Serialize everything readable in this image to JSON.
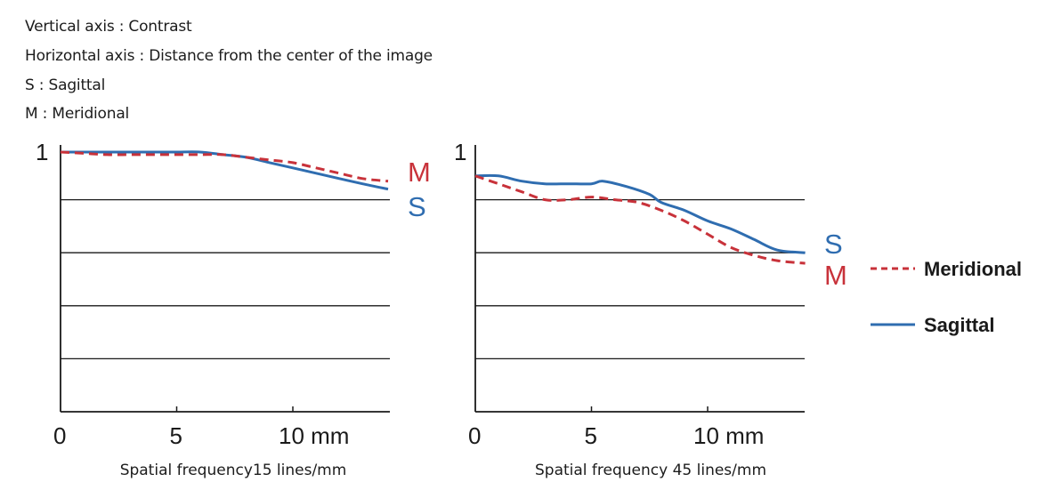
{
  "notes": {
    "vertical_axis": "Vertical axis : Contrast",
    "horizontal_axis": "Horizontal axis : Distance from the center of the image",
    "s_def": "S : Sagittal",
    "m_def": "M : Meridional"
  },
  "colors": {
    "meridional": "#c8323a",
    "sagittal": "#2f6db0",
    "axis": "#1a1a1a",
    "grid": "#1a1a1a"
  },
  "legend": {
    "meridional_label": "Meridional",
    "sagittal_label": "Sagittal",
    "placement": "right-middle"
  },
  "chart_data": [
    {
      "type": "line",
      "title": "",
      "caption": "Spatial frequency15 lines/mm",
      "xlabel": "Distance from the center of the image (mm)",
      "ylabel": "Contrast",
      "xlim": [
        0,
        14.2
      ],
      "ylim": [
        0,
        1
      ],
      "x_ticks": [
        0,
        5,
        10
      ],
      "x_tick_labels": [
        "0",
        "5",
        "10 mm"
      ],
      "y_tick_labels": [
        "1"
      ],
      "gridlines_y": [
        0.2,
        0.4,
        0.6,
        0.8
      ],
      "grid": true,
      "end_labels": {
        "upper": "M",
        "lower": "S"
      },
      "series": [
        {
          "name": "Meridional",
          "short": "M",
          "style": "dashed",
          "x": [
            0,
            1,
            2,
            3,
            4,
            5,
            6,
            7,
            8,
            9,
            10,
            11,
            12,
            13,
            14.1
          ],
          "values": [
            0.98,
            0.975,
            0.97,
            0.97,
            0.97,
            0.97,
            0.97,
            0.97,
            0.96,
            0.95,
            0.94,
            0.92,
            0.9,
            0.88,
            0.87
          ]
        },
        {
          "name": "Sagittal",
          "short": "S",
          "style": "solid",
          "x": [
            0,
            1,
            2,
            3,
            4,
            5,
            6,
            7,
            8,
            9,
            10,
            11,
            12,
            13,
            14.1
          ],
          "values": [
            0.98,
            0.98,
            0.98,
            0.98,
            0.98,
            0.98,
            0.98,
            0.97,
            0.96,
            0.94,
            0.92,
            0.9,
            0.88,
            0.86,
            0.84
          ]
        }
      ]
    },
    {
      "type": "line",
      "title": "",
      "caption": "Spatial frequency 45 lines/mm",
      "xlabel": "Distance from the center of the image (mm)",
      "ylabel": "Contrast",
      "xlim": [
        0,
        14.2
      ],
      "ylim": [
        0,
        1
      ],
      "x_ticks": [
        0,
        5,
        10
      ],
      "x_tick_labels": [
        "0",
        "5",
        "10 mm"
      ],
      "y_tick_labels": [
        "1"
      ],
      "gridlines_y": [
        0.2,
        0.4,
        0.6,
        0.8
      ],
      "grid": true,
      "end_labels": {
        "upper": "S",
        "lower": "M"
      },
      "series": [
        {
          "name": "Meridional",
          "short": "M",
          "style": "dashed",
          "x": [
            0,
            1,
            2,
            3,
            4,
            5,
            6,
            7,
            8,
            9,
            10,
            11,
            12,
            13,
            14.2
          ],
          "values": [
            0.89,
            0.86,
            0.83,
            0.8,
            0.8,
            0.81,
            0.8,
            0.79,
            0.76,
            0.72,
            0.67,
            0.62,
            0.59,
            0.57,
            0.56
          ]
        },
        {
          "name": "Sagittal",
          "short": "S",
          "style": "solid",
          "x": [
            0,
            1,
            2,
            3,
            4,
            5,
            5.5,
            6.5,
            7.5,
            8,
            9,
            10,
            11,
            12,
            13,
            14.2
          ],
          "values": [
            0.89,
            0.89,
            0.87,
            0.86,
            0.86,
            0.86,
            0.87,
            0.85,
            0.82,
            0.79,
            0.76,
            0.72,
            0.69,
            0.65,
            0.61,
            0.6
          ]
        }
      ]
    }
  ]
}
